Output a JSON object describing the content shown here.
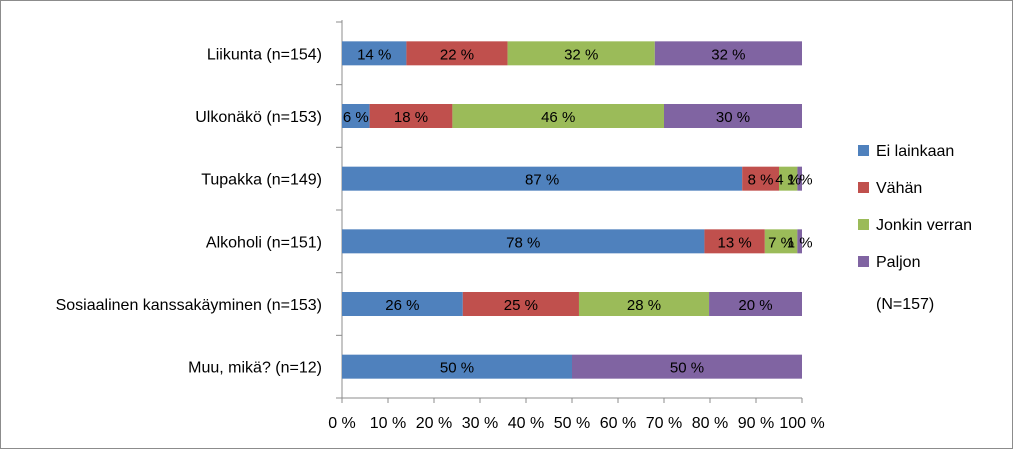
{
  "chart_data": {
    "type": "bar",
    "orientation": "horizontal",
    "stacked": "percent",
    "categories": [
      "Liikunta (n=154)",
      "Ulkonäkö (n=153)",
      "Tupakka (n=149)",
      "Alkoholi (n=151)",
      "Sosiaalinen kanssakäyminen (n=153)",
      "Muu, mikä? (n=12)"
    ],
    "series": [
      {
        "name": "Ei lainkaan",
        "color": "#4F81BD",
        "values": [
          14,
          6,
          87,
          78,
          26,
          50
        ],
        "labels": [
          "14 %",
          "6 %",
          "87 %",
          "78 %",
          "26 %",
          "50 %"
        ]
      },
      {
        "name": "Vähän",
        "color": "#C0504D",
        "values": [
          22,
          18,
          8,
          13,
          25,
          0
        ],
        "labels": [
          "22 %",
          "18 %",
          "8 %",
          "13 %",
          "25 %",
          ""
        ]
      },
      {
        "name": "Jonkin verran",
        "color": "#9BBB59",
        "values": [
          32,
          46,
          4,
          7,
          28,
          0
        ],
        "labels": [
          "32 %",
          "46 %",
          "4 %",
          "7 %",
          "28 %",
          ""
        ]
      },
      {
        "name": "Paljon",
        "color": "#8064A2",
        "values": [
          32,
          30,
          1,
          1,
          20,
          50
        ],
        "labels": [
          "32 %",
          "30 %",
          "1 %",
          "1 %",
          "20 %",
          "50 %"
        ]
      }
    ],
    "xticks": [
      "0 %",
      "10 %",
      "20 %",
      "30 %",
      "40 %",
      "50 %",
      "60 %",
      "70 %",
      "80 %",
      "90 %",
      "100 %"
    ],
    "xlim": [
      0,
      100
    ],
    "legend_note": "(N=157)",
    "legend_position": "right",
    "grid": false
  }
}
